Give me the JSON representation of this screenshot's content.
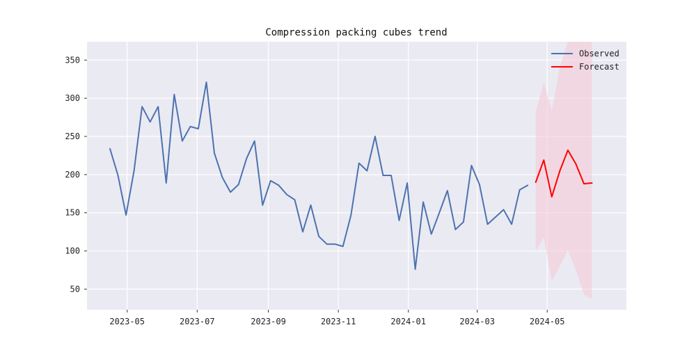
{
  "chart_data": {
    "type": "line",
    "title": "Compression packing cubes trend",
    "xlabel": "",
    "ylabel": "",
    "x_axis": "date",
    "xlim": [
      "2023-03-27",
      "2024-07-09"
    ],
    "ylim": [
      23,
      374
    ],
    "x_ticks": [
      "2023-05-01",
      "2023-07-01",
      "2023-09-01",
      "2023-11-01",
      "2024-01-01",
      "2024-03-01",
      "2024-05-01"
    ],
    "x_tick_labels": [
      "2023-05",
      "2023-07",
      "2023-09",
      "2023-11",
      "2024-01",
      "2024-03",
      "2024-05"
    ],
    "y_ticks": [
      50,
      100,
      150,
      200,
      250,
      300,
      350
    ],
    "grid": true,
    "background": "#eaeaf2",
    "legend": {
      "position": "top-right"
    },
    "series": [
      {
        "name": "Observed",
        "color": "#4c72b0",
        "x": [
          "2023-04-16",
          "2023-04-23",
          "2023-04-30",
          "2023-05-07",
          "2023-05-14",
          "2023-05-21",
          "2023-05-28",
          "2023-06-04",
          "2023-06-11",
          "2023-06-18",
          "2023-06-25",
          "2023-07-02",
          "2023-07-09",
          "2023-07-16",
          "2023-07-23",
          "2023-07-30",
          "2023-08-06",
          "2023-08-13",
          "2023-08-20",
          "2023-08-27",
          "2023-09-03",
          "2023-09-10",
          "2023-09-17",
          "2023-09-24",
          "2023-10-01",
          "2023-10-08",
          "2023-10-15",
          "2023-10-22",
          "2023-10-29",
          "2023-11-05",
          "2023-11-12",
          "2023-11-19",
          "2023-11-26",
          "2023-12-03",
          "2023-12-10",
          "2023-12-17",
          "2023-12-24",
          "2023-12-31",
          "2024-01-07",
          "2024-01-14",
          "2024-01-21",
          "2024-01-28",
          "2024-02-04",
          "2024-02-11",
          "2024-02-18",
          "2024-02-25",
          "2024-03-03",
          "2024-03-10",
          "2024-03-24",
          "2024-03-31",
          "2024-04-07",
          "2024-04-14"
        ],
        "y": [
          234,
          199,
          147,
          205,
          289,
          269,
          289,
          189,
          305,
          244,
          263,
          260,
          321,
          228,
          196,
          177,
          187,
          221,
          244,
          160,
          192,
          186,
          174,
          167,
          125,
          160,
          119,
          109,
          109,
          106,
          147,
          215,
          205,
          250,
          199,
          199,
          140,
          189,
          76,
          164,
          122,
          150,
          179,
          128,
          138,
          212,
          187,
          135,
          154,
          135,
          180,
          186
        ]
      },
      {
        "name": "Forecast",
        "color": "#ff0000",
        "x": [
          "2024-04-21",
          "2024-04-28",
          "2024-05-05",
          "2024-05-12",
          "2024-05-19",
          "2024-05-26",
          "2024-06-02",
          "2024-06-09"
        ],
        "y": [
          190,
          219,
          171,
          205,
          232,
          214,
          188,
          189
        ]
      }
    ],
    "forecast_interval": {
      "color": "#f5c6d6",
      "x": [
        "2024-04-21",
        "2024-04-28",
        "2024-05-05",
        "2024-05-12",
        "2024-05-19",
        "2024-05-26",
        "2024-06-02",
        "2024-06-09"
      ],
      "lower": [
        100,
        118,
        60,
        80,
        101,
        75,
        43,
        37
      ],
      "upper": [
        282,
        321,
        283,
        341,
        374,
        374,
        374,
        374
      ]
    }
  }
}
